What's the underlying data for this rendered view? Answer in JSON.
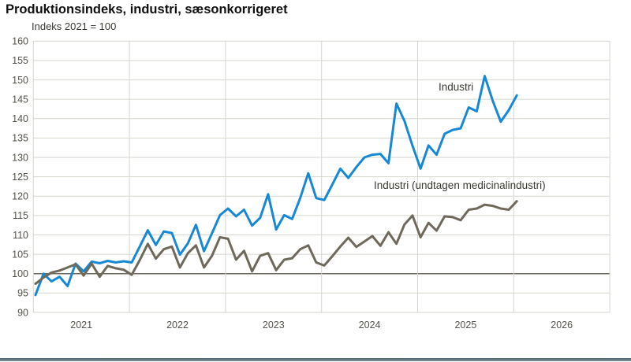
{
  "header": {
    "title": "Produktionsindeks, industri, sæsonkorrigeret",
    "subtitle": "Indeks 2021 = 100"
  },
  "chart_data": {
    "type": "line",
    "title": "Produktionsindeks, industri, sæsonkorrigeret",
    "unit_label": "Indeks 2021 = 100",
    "xlabel": "",
    "ylabel": "Indeks 2021 = 100",
    "ylim": [
      90,
      160
    ],
    "ytick_step": 5,
    "baseline_value": 100,
    "grid": true,
    "legend_position": "annotated-on-chart",
    "x_tick_labels": [
      "2021",
      "2022",
      "2023",
      "2024",
      "2025",
      "2026"
    ],
    "frequency": "monthly",
    "start_month": "2021-01",
    "colors": {
      "grid": "#d6d6ce",
      "baseline": "#6b675c",
      "axis_text": "#54524a",
      "industri": "#1788d4",
      "industri_ex_medicinal": "#6e695b",
      "footer_bar": "#5d737e"
    },
    "series": [
      {
        "name": "Industri",
        "color": "#1788d4",
        "values": [
          94.5,
          100.0,
          98.0,
          99.2,
          96.8,
          102.6,
          100.6,
          103.1,
          102.7,
          103.3,
          102.9,
          103.2,
          102.9,
          107.0,
          111.2,
          107.4,
          110.9,
          110.5,
          104.9,
          107.8,
          112.6,
          105.8,
          110.4,
          115.1,
          116.8,
          114.8,
          116.5,
          112.4,
          114.4,
          120.5,
          111.4,
          115.1,
          114.1,
          119.5,
          125.9,
          119.5,
          119.0,
          123.0,
          127.1,
          124.7,
          127.5,
          130.0,
          130.7,
          130.9,
          128.5,
          143.9,
          139.4,
          133.0,
          127.1,
          133.1,
          130.7,
          136.1,
          137.1,
          137.5,
          142.9,
          141.9,
          151.0,
          144.6,
          139.2,
          142.2,
          146.0
        ]
      },
      {
        "name": "Industri (undtagen medicinalindustri)",
        "color": "#6e695b",
        "values": [
          97.4,
          99.0,
          100.3,
          100.8,
          101.6,
          102.4,
          99.5,
          102.6,
          99.2,
          102.0,
          101.4,
          101.0,
          99.7,
          103.5,
          107.7,
          103.9,
          106.3,
          107.0,
          101.6,
          105.3,
          107.3,
          101.6,
          104.6,
          109.4,
          109.0,
          103.6,
          105.9,
          100.6,
          104.6,
          105.3,
          100.9,
          103.6,
          104.0,
          106.3,
          107.3,
          102.9,
          102.1,
          104.5,
          107.0,
          109.3,
          106.9,
          108.3,
          109.7,
          107.2,
          110.7,
          107.7,
          112.7,
          115.0,
          109.4,
          113.1,
          111.1,
          114.8,
          114.6,
          113.8,
          116.5,
          116.8,
          117.8,
          117.5,
          116.8,
          116.5,
          118.7
        ]
      }
    ]
  }
}
